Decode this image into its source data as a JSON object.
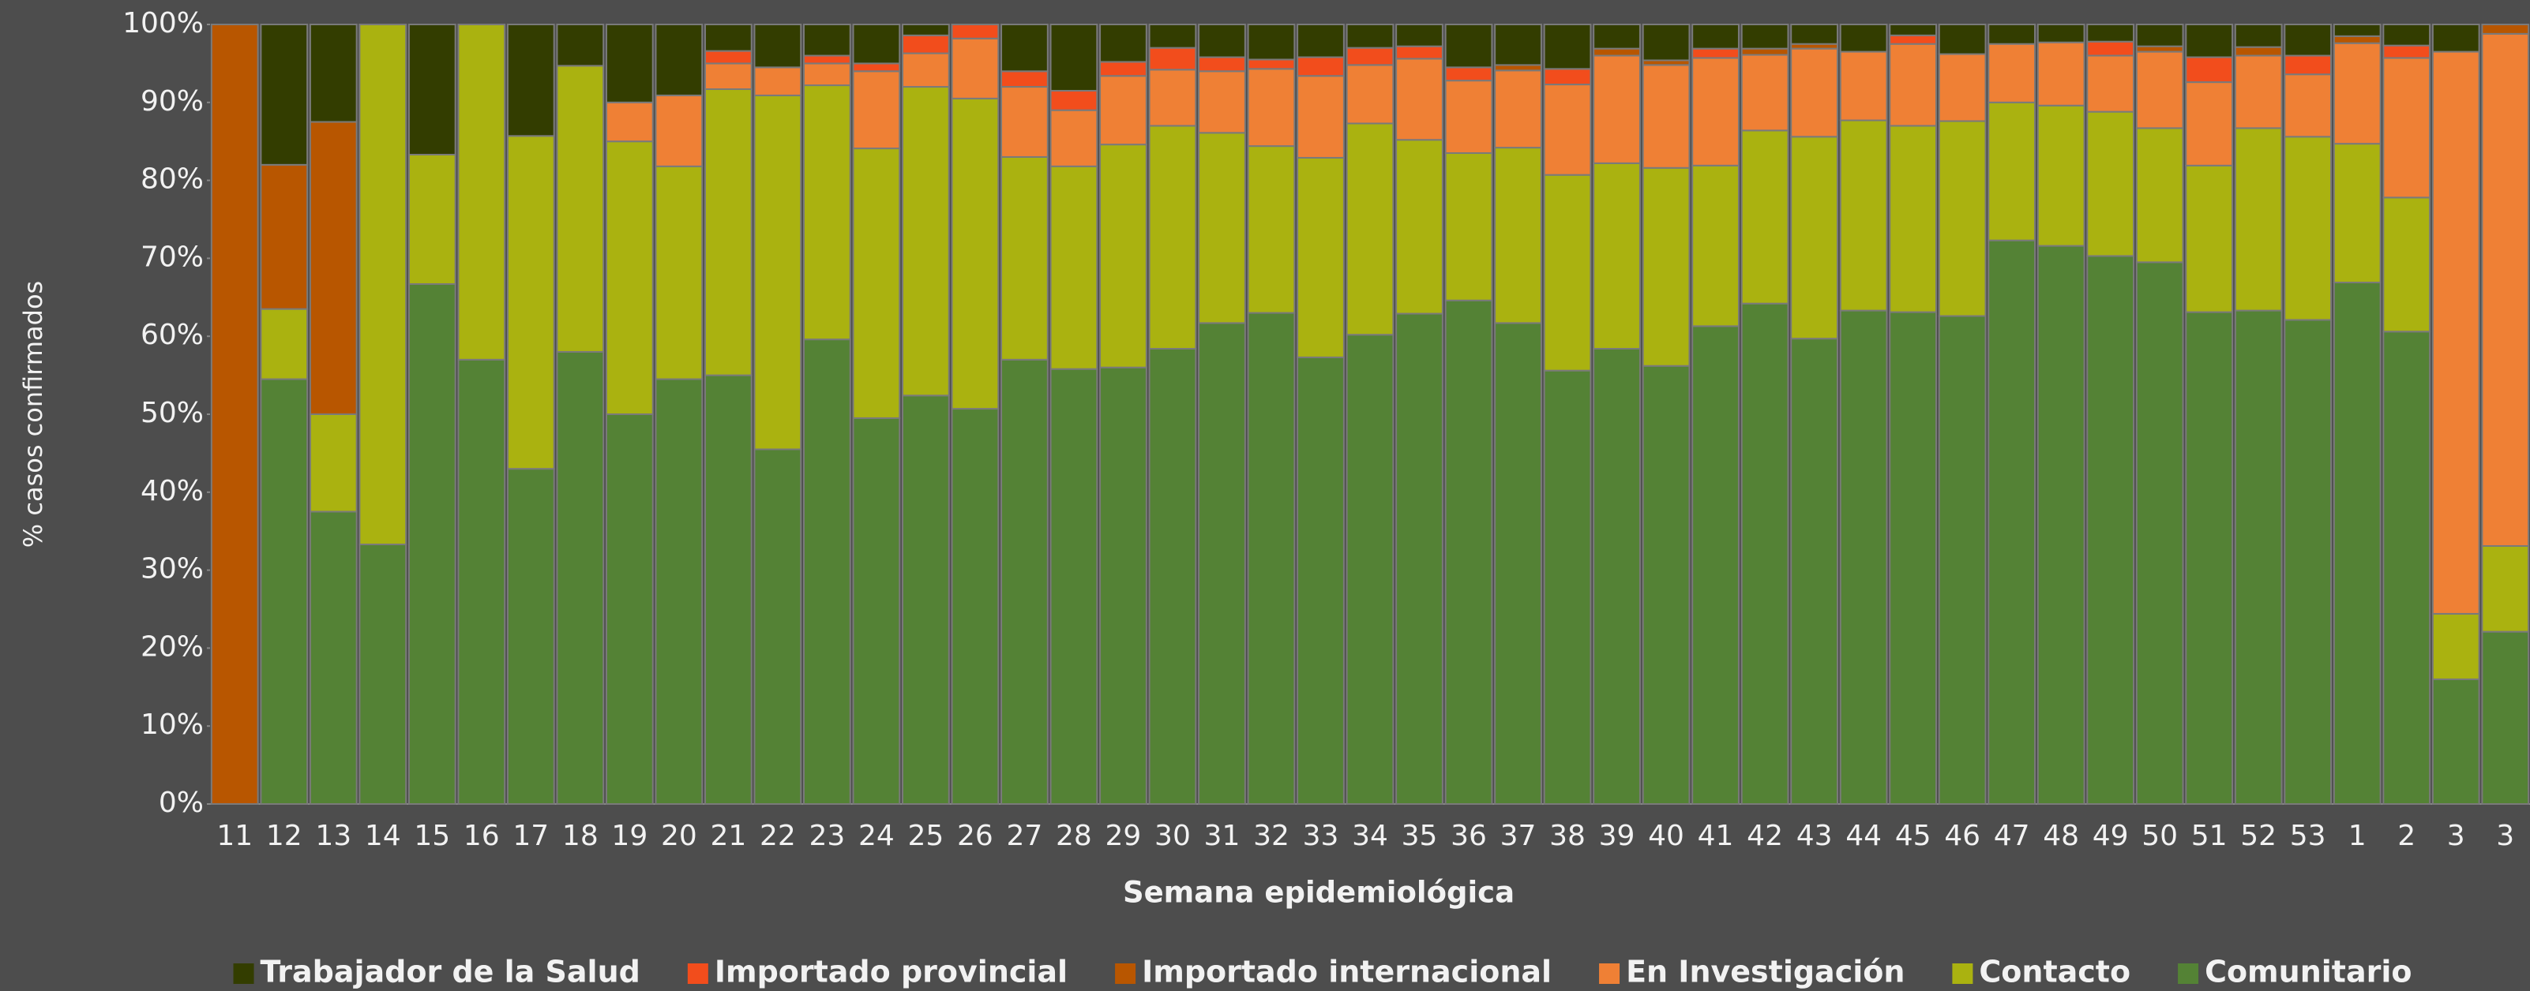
{
  "chart_data": {
    "type": "stacked_bar_percent",
    "ylabel": "% casos confirmados",
    "xlabel": "Semana epidemiológica",
    "categories": [
      "11",
      "12",
      "13",
      "14",
      "15",
      "16",
      "17",
      "18",
      "19",
      "20",
      "21",
      "22",
      "23",
      "24",
      "25",
      "26",
      "27",
      "28",
      "29",
      "30",
      "31",
      "32",
      "33",
      "34",
      "35",
      "36",
      "37",
      "38",
      "39",
      "40",
      "41",
      "42",
      "43",
      "44",
      "45",
      "46",
      "47",
      "48",
      "49",
      "50",
      "51",
      "52",
      "53",
      "1",
      "2",
      "3",
      "3"
    ],
    "ylim": [
      0,
      100
    ],
    "yticks": [
      {
        "value": 0,
        "label": "0%"
      },
      {
        "value": 10,
        "label": "10%"
      },
      {
        "value": 20,
        "label": "20%"
      },
      {
        "value": 30,
        "label": "30%"
      },
      {
        "value": 40,
        "label": "40%"
      },
      {
        "value": 50,
        "label": "50%"
      },
      {
        "value": 60,
        "label": "60%"
      },
      {
        "value": 70,
        "label": "70%"
      },
      {
        "value": 80,
        "label": "80%"
      },
      {
        "value": 90,
        "label": "90%"
      },
      {
        "value": 100,
        "label": "100%"
      }
    ],
    "legend": "bottom",
    "series": [
      {
        "name": "Trabajador de la Salud",
        "color": "#333d00",
        "values": [
          0,
          18,
          12.5,
          0,
          16.7,
          0,
          14.3,
          5.3,
          10,
          9.1,
          3.4,
          5.5,
          4,
          5,
          1.4,
          0,
          6,
          8.5,
          4.8,
          3,
          4.2,
          4.5,
          4.2,
          3,
          2.8,
          5.5,
          5.2,
          5.7,
          3.1,
          4.6,
          3.1,
          3.1,
          2.5,
          3.5,
          1.4,
          3.8,
          2.5,
          2.3,
          2.2,
          2.8,
          4.2,
          2.9,
          4,
          1.5,
          2.7,
          3.5,
          0
        ]
      },
      {
        "name": "Importado provincial",
        "color": "#f24d1c",
        "values": [
          0,
          0,
          0,
          0,
          0,
          0,
          0,
          0,
          0,
          0,
          1.6,
          0,
          1,
          1,
          2.3,
          1.8,
          2,
          2.5,
          1.8,
          2.8,
          1.8,
          1.2,
          2.4,
          2.2,
          1.6,
          1.7,
          0,
          2,
          0,
          0,
          1.2,
          0,
          0,
          0,
          1.1,
          0,
          0,
          0,
          1.8,
          0,
          3.2,
          0,
          2.4,
          0,
          1.6,
          0,
          0
        ]
      },
      {
        "name": "Importado internacional",
        "color": "#b85600",
        "values": [
          100,
          18.5,
          37.5,
          0,
          0,
          0,
          0,
          0,
          0,
          0,
          0,
          0,
          0,
          0,
          0,
          0,
          0,
          0,
          0,
          0,
          0,
          0,
          0,
          0,
          0,
          0,
          0.7,
          0,
          0.9,
          0.6,
          0,
          0.8,
          0.6,
          0,
          0,
          0,
          0,
          0,
          0,
          0.7,
          0,
          1.1,
          0,
          0.9,
          0,
          0,
          1.2
        ]
      },
      {
        "name": "En Investigación",
        "color": "#ef8035",
        "values": [
          0,
          0,
          0,
          0,
          0,
          0,
          0,
          0,
          5,
          9.1,
          3.3,
          3.6,
          2.8,
          9.9,
          4.3,
          7.7,
          9,
          7.2,
          8.8,
          7.2,
          7.9,
          9.9,
          10.5,
          7.5,
          10.4,
          9.3,
          9.9,
          11.6,
          13.8,
          13.2,
          13.8,
          9.7,
          11.3,
          8.8,
          10.5,
          8.6,
          7.5,
          8.1,
          7.2,
          9.8,
          10.7,
          9.3,
          8,
          12.9,
          17.9,
          72.1,
          65.7
        ]
      },
      {
        "name": "Contacto",
        "color": "#aab210",
        "values": [
          0,
          9,
          12.5,
          66.7,
          16.6,
          43,
          42.7,
          36.7,
          35,
          27.3,
          36.7,
          45.4,
          32.6,
          34.6,
          39.6,
          39.8,
          26,
          26,
          28.6,
          28.6,
          24.4,
          21.4,
          25.6,
          27.1,
          22.3,
          18.9,
          22.5,
          25.1,
          23.8,
          25.4,
          20.6,
          22.2,
          25.9,
          24.4,
          23.9,
          25,
          17.7,
          18,
          18.5,
          17.2,
          18.8,
          23.4,
          23.5,
          17.8,
          17.2,
          8.4,
          11
        ]
      },
      {
        "name": "Comunitario",
        "color": "#548235",
        "values": [
          0,
          54.5,
          37.5,
          33.3,
          66.7,
          57,
          43,
          58,
          50,
          54.5,
          55,
          45.5,
          59.6,
          49.5,
          52.4,
          50.7,
          57,
          55.8,
          56,
          58.4,
          61.7,
          63,
          57.3,
          60.2,
          62.9,
          64.6,
          61.7,
          55.6,
          58.4,
          56.2,
          61.3,
          64.2,
          59.7,
          63.3,
          63.1,
          62.6,
          72.3,
          71.6,
          70.3,
          69.5,
          63.1,
          63.3,
          62.1,
          66.9,
          60.6,
          16,
          22.1
        ]
      }
    ]
  }
}
